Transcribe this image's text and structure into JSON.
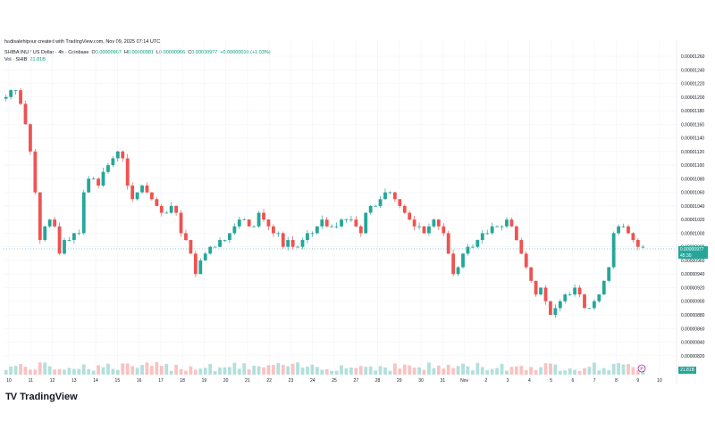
{
  "header": {
    "attribution": "hadisalehipour created with TradingView.com, Nov 09, 2025 07:14 UTC"
  },
  "legend": {
    "symbol": "SHIBA INU / US Dollar · 4h · Coinbase",
    "open_label": "O",
    "open": "0.00000967",
    "high_label": "H",
    "high": "0.00000981",
    "low_label": "L",
    "low": "0.00000966",
    "close_label": "C",
    "close": "0.00000977",
    "change": "+0.00000010 (+1.03%)",
    "volume_label": "Vol · SHIB",
    "volume": "21.81B"
  },
  "price_badge": {
    "price": "0.00000977",
    "countdown": "45:30"
  },
  "volume_badge": "21.81B",
  "event_marker": "P",
  "brand": {
    "name": "TradingView"
  },
  "colors": {
    "up": "#26a69a",
    "down": "#ef5350",
    "grid": "#f0f3fa",
    "axis_text": "#131722",
    "current_line": "#26a69a"
  },
  "chart_data": {
    "type": "candlestick",
    "symbol": "SHIBA INU / US Dollar",
    "interval": "4h",
    "exchange": "Coinbase",
    "ylim": [
      8.2e-06,
      1.26e-05
    ],
    "y_ticks": [
      "0.00001260",
      "0.00001240",
      "0.00001220",
      "0.00001200",
      "0.00001180",
      "0.00001160",
      "0.00001140",
      "0.00001120",
      "0.00001100",
      "0.00001080",
      "0.00001060",
      "0.00001040",
      "0.00001020",
      "0.00001000",
      "0.00000980",
      "0.00000960",
      "0.00000940",
      "0.00000920",
      "0.00000900",
      "0.00000880",
      "0.00000860",
      "0.00000840",
      "0.00000820"
    ],
    "x_ticks": [
      "10",
      "11",
      "12",
      "13",
      "14",
      "15",
      "16",
      "17",
      "18",
      "19",
      "20",
      "21",
      "22",
      "23",
      "24",
      "25",
      "27",
      "28",
      "29",
      "30",
      "31",
      "Nov",
      "2",
      "3",
      "4",
      "5",
      "6",
      "7",
      "8",
      "9",
      "10"
    ],
    "current_price": 9.77e-06,
    "closes": [
      1.2e-05,
      1.21e-05,
      1.21e-05,
      1.19e-05,
      1.16e-05,
      1.12e-05,
      1.06e-05,
      9.9e-06,
      1.01e-05,
      1.02e-05,
      1.01e-05,
      9.7e-06,
      9.9e-06,
      9.9e-06,
      1e-05,
      1e-05,
      1.06e-05,
      1.08e-05,
      1.08e-05,
      1.07e-05,
      1.09e-05,
      1.1e-05,
      1.11e-05,
      1.12e-05,
      1.11e-05,
      1.07e-05,
      1.05e-05,
      1.06e-05,
      1.07e-05,
      1.06e-05,
      1.05e-05,
      1.04e-05,
      1.03e-05,
      1.03e-05,
      1.04e-05,
      1.03e-05,
      1e-05,
      9.9e-06,
      9.7e-06,
      9.4e-06,
      9.6e-06,
      9.7e-06,
      9.8e-06,
      9.8e-06,
      9.9e-06,
      9.9e-06,
      1e-05,
      1.01e-05,
      1.02e-05,
      1.02e-05,
      1.01e-05,
      1.01e-05,
      1.03e-05,
      1.02e-05,
      1.01e-05,
      1e-05,
      1e-05,
      9.8e-06,
      9.9e-06,
      9.8e-06,
      9.8e-06,
      9.9e-06,
      1e-05,
      1e-05,
      1.01e-05,
      1.02e-05,
      1.01e-05,
      1.01e-05,
      1.01e-05,
      1.02e-05,
      1.02e-05,
      1.02e-05,
      1.01e-05,
      1e-05,
      1.03e-05,
      1.04e-05,
      1.04e-05,
      1.05e-05,
      1.06e-05,
      1.06e-05,
      1.05e-05,
      1.04e-05,
      1.03e-05,
      1.02e-05,
      1.01e-05,
      1.01e-05,
      1e-05,
      1.01e-05,
      1.02e-05,
      1.01e-05,
      1e-05,
      9.7e-06,
      9.4e-06,
      9.5e-06,
      9.7e-06,
      9.8e-06,
      9.8e-06,
      9.9e-06,
      1e-05,
      1e-05,
      1.01e-05,
      1.01e-05,
      1.01e-05,
      1.02e-05,
      1.01e-05,
      9.9e-06,
      9.7e-06,
      9.5e-06,
      9.3e-06,
      9.1e-06,
      9.2e-06,
      9e-06,
      8.8e-06,
      8.9e-06,
      9e-06,
      9.1e-06,
      9.1e-06,
      9.2e-06,
      9.1e-06,
      8.9e-06,
      8.9e-06,
      9e-06,
      9.1e-06,
      9.3e-06,
      9.5e-06,
      1e-05,
      1.01e-05,
      1.01e-05,
      1e-05,
      9.9e-06,
      9.8e-06,
      9.8e-06
    ]
  }
}
